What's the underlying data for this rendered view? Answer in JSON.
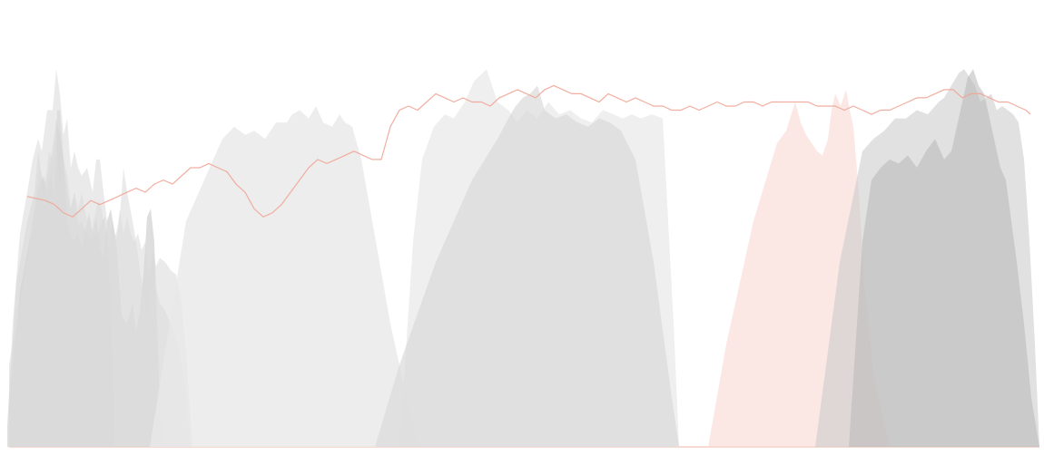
{
  "chart_data": {
    "type": "area",
    "title": "",
    "xlabel": "",
    "ylabel": "",
    "xlim": [
      0,
      1150
    ],
    "ylim": [
      0,
      100
    ],
    "grid": false,
    "legend": "none",
    "axes_visible": false,
    "series": [
      {
        "color": "#cfcfcf",
        "opacity": 0.55,
        "x": [
          8,
          18,
          30,
          38,
          42,
          46,
          50,
          54,
          58,
          62,
          66,
          70,
          74,
          78,
          82,
          86,
          90,
          95,
          100,
          104,
          108,
          112,
          116,
          120,
          124,
          126
        ],
        "y": [
          5,
          40,
          55,
          62,
          72,
          66,
          64,
          68,
          73,
          80,
          76,
          70,
          62,
          58,
          62,
          54,
          55,
          52,
          50,
          51,
          52,
          55,
          56,
          44,
          20,
          0
        ]
      },
      {
        "color": "#c2c2c2",
        "opacity": 0.55,
        "x": [
          10,
          22,
          34,
          40,
          44,
          48,
          52,
          56,
          60,
          63,
          66,
          70,
          74,
          80,
          86,
          90,
          94,
          98,
          102,
          106,
          110,
          114,
          118,
          122,
          128,
          134,
          140,
          146,
          150,
          154,
          158,
          162,
          166,
          170,
          176,
          180
        ],
        "y": [
          10,
          38,
          52,
          60,
          64,
          66,
          62,
          67,
          60,
          82,
          82,
          70,
          55,
          50,
          52,
          48,
          53,
          57,
          52,
          56,
          48,
          46,
          55,
          58,
          50,
          32,
          30,
          35,
          28,
          33,
          42,
          56,
          58,
          50,
          10,
          0
        ]
      },
      {
        "color": "#d8d8d8",
        "opacity": 0.55,
        "x": [
          10,
          30,
          40,
          44,
          48,
          54,
          58,
          62,
          66,
          70,
          74,
          78,
          82,
          86,
          90,
          96,
          100,
          104,
          108,
          112,
          116,
          120,
          124,
          128,
          132,
          136,
          140,
          144,
          148,
          152,
          156,
          160,
          164,
          168,
          172,
          176,
          182,
          188,
          194,
          200,
          206,
          212
        ],
        "y": [
          20,
          45,
          62,
          68,
          62,
          72,
          70,
          76,
          64,
          70,
          66,
          58,
          62,
          58,
          62,
          55,
          52,
          56,
          60,
          58,
          52,
          48,
          55,
          50,
          58,
          52,
          56,
          52,
          50,
          52,
          48,
          50,
          42,
          48,
          44,
          46,
          45,
          43,
          42,
          35,
          20,
          0
        ]
      },
      {
        "color": "#dcdcdc",
        "opacity": 0.6,
        "x": [
          8,
          14,
          22,
          30,
          36,
          42,
          46,
          52,
          58,
          62,
          66,
          70,
          74,
          78,
          82,
          86,
          90,
          96,
          102,
          106,
          110,
          114,
          118,
          122,
          128,
          132,
          136,
          140,
          146,
          150,
          156,
          162,
          166,
          170,
          176,
          182,
          188,
          196,
          204,
          210
        ],
        "y": [
          5,
          30,
          52,
          62,
          70,
          75,
          72,
          82,
          82,
          92,
          86,
          76,
          80,
          68,
          72,
          68,
          66,
          68,
          62,
          70,
          70,
          62,
          55,
          50,
          52,
          56,
          68,
          62,
          55,
          50,
          40,
          32,
          38,
          40,
          35,
          33,
          30,
          25,
          15,
          0
        ]
      },
      {
        "color": "#e9e9e9",
        "opacity": 0.8,
        "x": [
          165,
          205,
          245,
          258,
          270,
          280,
          292,
          304,
          316,
          322,
          330,
          340,
          348,
          356,
          366,
          374,
          380,
          388,
          398,
          410,
          430,
          450,
          462
        ],
        "y": [
          0,
          55,
          75,
          78,
          76,
          77,
          75,
          79,
          79,
          81,
          82,
          80,
          83,
          79,
          78,
          81,
          79,
          78,
          70,
          55,
          30,
          10,
          0
        ]
      },
      {
        "color": "#ebebeb",
        "opacity": 0.8,
        "x": [
          440,
          455,
          465,
          478,
          490,
          500,
          512,
          522,
          536,
          548,
          560,
          570,
          580,
          592,
          604,
          616,
          628,
          640,
          652,
          664,
          676,
          686,
          696,
          706,
          718,
          730,
          742,
          748
        ],
        "y": [
          0,
          50,
          70,
          78,
          81,
          80,
          84,
          89,
          92,
          84,
          82,
          79,
          82,
          80,
          84,
          81,
          82,
          80,
          79,
          82,
          81,
          80,
          81,
          80,
          81,
          80,
          30,
          0
        ]
      },
      {
        "color": "#dadada",
        "opacity": 0.7,
        "x": [
          413,
          440,
          480,
          520,
          548,
          560,
          568,
          576,
          584,
          592,
          600,
          612,
          624,
          636,
          648,
          660,
          672,
          684,
          700,
          720,
          740,
          748
        ],
        "y": [
          0,
          20,
          45,
          65,
          75,
          80,
          83,
          85,
          86,
          88,
          82,
          80,
          81,
          79,
          78,
          80,
          79,
          77,
          70,
          45,
          12,
          0
        ]
      },
      {
        "color": "#f8d6d0",
        "opacity": 0.55,
        "x": [
          780,
          800,
          830,
          856,
          866,
          876,
          882,
          888,
          894,
          900,
          906,
          912,
          916,
          920,
          926,
          932,
          936,
          940,
          946,
          952,
          962,
          980
        ],
        "y": [
          0,
          25,
          55,
          74,
          77,
          84,
          79,
          76,
          74,
          72,
          71,
          75,
          82,
          86,
          83,
          87,
          82,
          78,
          62,
          40,
          18,
          0
        ]
      },
      {
        "color": "#c9c9c9",
        "opacity": 0.55,
        "x": [
          898,
          925,
          950,
          962,
          974,
          986,
          998,
          1010,
          1022,
          1034,
          1040,
          1048,
          1056,
          1062,
          1068,
          1074,
          1080,
          1086,
          1092,
          1098,
          1104,
          1110,
          1116,
          1122,
          1128,
          1134,
          1140,
          1145
        ],
        "y": [
          0,
          45,
          72,
          75,
          77,
          80,
          80,
          82,
          81,
          84,
          85,
          88,
          91,
          92,
          90,
          88,
          84,
          85,
          86,
          82,
          83,
          82,
          81,
          79,
          70,
          50,
          25,
          0
        ]
      },
      {
        "color": "#b8b8b8",
        "opacity": 0.55,
        "x": [
          935,
          950,
          960,
          970,
          980,
          990,
          1000,
          1010,
          1020,
          1030,
          1040,
          1048,
          1054,
          1060,
          1066,
          1072,
          1078,
          1084,
          1090,
          1096,
          1102,
          1108,
          1114,
          1120,
          1128,
          1136,
          1145
        ],
        "y": [
          0,
          50,
          65,
          68,
          70,
          69,
          71,
          68,
          72,
          75,
          70,
          72,
          78,
          84,
          90,
          92,
          88,
          86,
          80,
          74,
          68,
          65,
          55,
          45,
          30,
          12,
          0
        ]
      },
      {
        "color": "#f0a596",
        "opacity": 0.9,
        "kind": "line",
        "x": [
          30,
          50,
          60,
          70,
          80,
          90,
          100,
          110,
          120,
          130,
          140,
          150,
          160,
          170,
          180,
          190,
          200,
          210,
          220,
          230,
          240,
          250,
          260,
          270,
          280,
          290,
          300,
          310,
          320,
          330,
          340,
          350,
          360,
          370,
          380,
          390,
          400,
          410,
          420,
          430,
          440,
          450,
          460,
          470,
          480,
          490,
          500,
          510,
          520,
          530,
          540,
          550,
          560,
          570,
          580,
          590,
          600,
          610,
          620,
          630,
          640,
          650,
          660,
          670,
          680,
          690,
          700,
          710,
          720,
          730,
          740,
          750,
          760,
          770,
          780,
          790,
          800,
          810,
          820,
          830,
          840,
          850,
          860,
          870,
          880,
          890,
          900,
          910,
          920,
          930,
          940,
          950,
          960,
          970,
          980,
          990,
          1000,
          1010,
          1020,
          1030,
          1040,
          1050,
          1060,
          1070,
          1080,
          1090,
          1100,
          1110,
          1120,
          1130,
          1135
        ],
        "y": [
          61,
          60,
          59,
          57,
          56,
          58,
          60,
          59,
          60,
          61,
          62,
          63,
          62,
          64,
          65,
          64,
          66,
          68,
          68,
          69,
          68,
          67,
          64,
          62,
          58,
          56,
          57,
          59,
          62,
          65,
          68,
          70,
          69,
          70,
          71,
          72,
          71,
          70,
          70,
          78,
          82,
          83,
          82,
          84,
          86,
          85,
          84,
          85,
          84,
          84,
          83,
          85,
          86,
          87,
          86,
          85,
          87,
          88,
          87,
          86,
          86,
          85,
          84,
          86,
          85,
          84,
          85,
          84,
          83,
          83,
          82,
          82,
          83,
          82,
          83,
          84,
          83,
          83,
          84,
          84,
          83,
          84,
          84,
          84,
          84,
          84,
          83,
          83,
          83,
          82,
          83,
          82,
          81,
          82,
          82,
          83,
          84,
          85,
          85,
          86,
          87,
          87,
          85,
          86,
          86,
          85,
          84,
          84,
          83,
          82,
          81
        ]
      }
    ]
  }
}
